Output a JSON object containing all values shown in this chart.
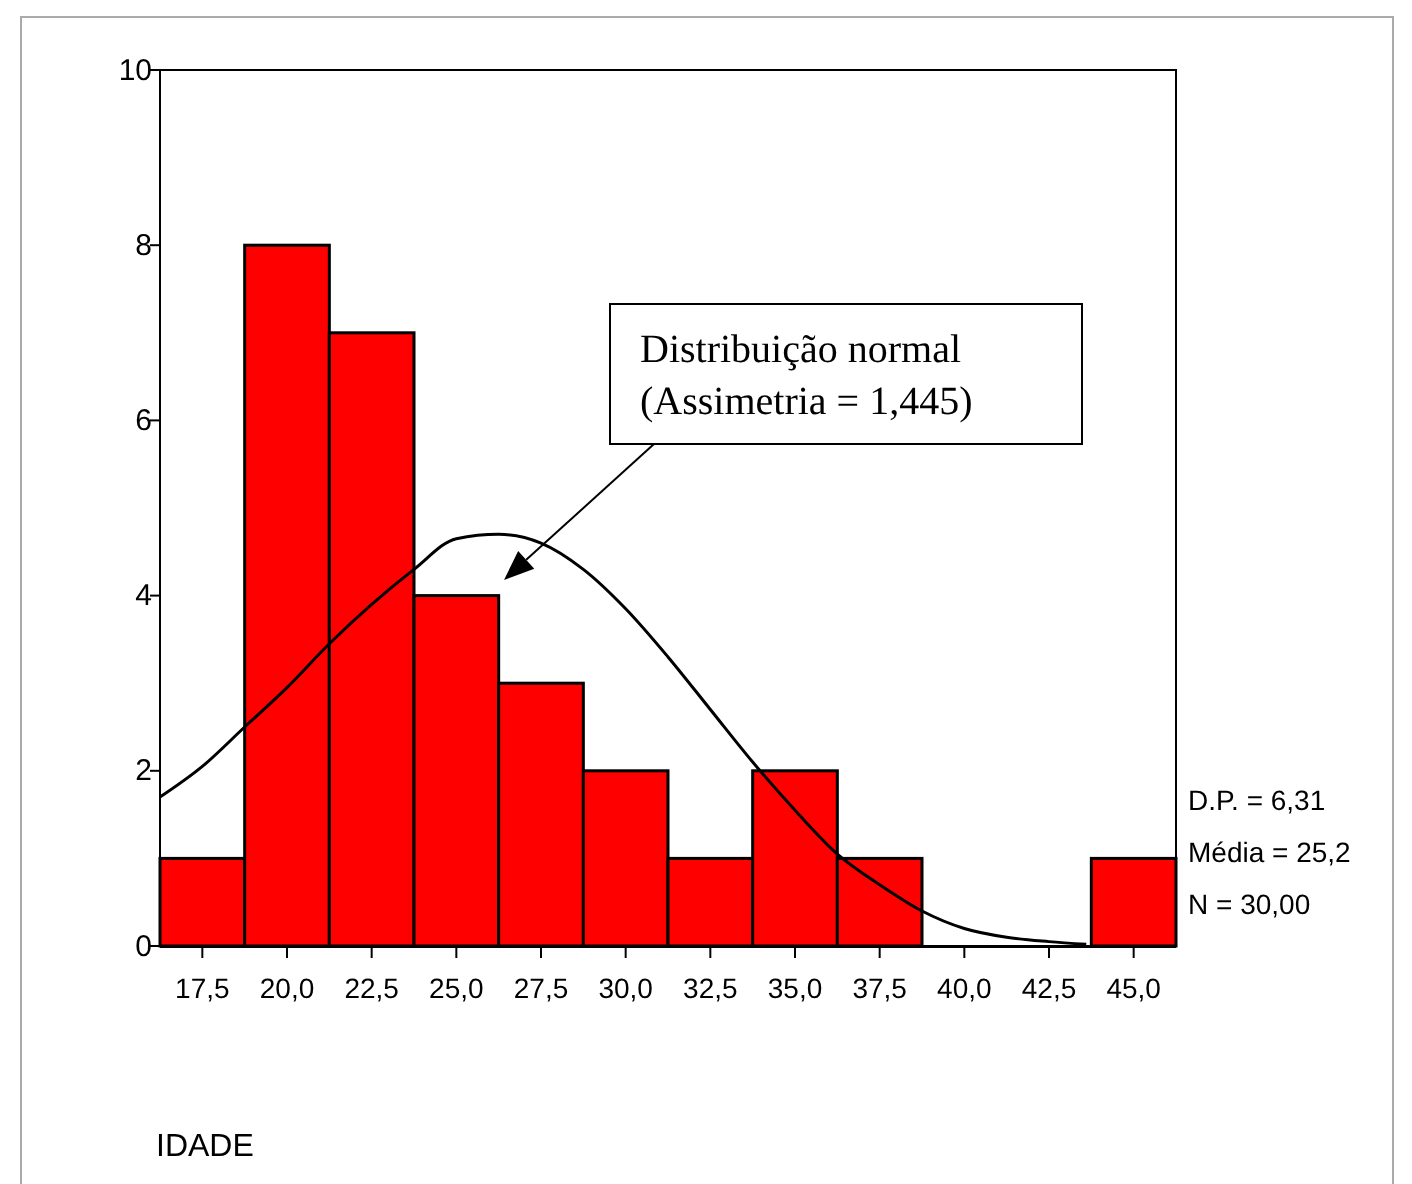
{
  "chart_data": {
    "type": "histogram",
    "xlabel": "IDADE",
    "bins": [
      16.25,
      18.75,
      21.25,
      23.75,
      26.25,
      28.75,
      31.25,
      33.75,
      36.25,
      38.75,
      41.25,
      43.75,
      46.25
    ],
    "values": [
      1,
      8,
      7,
      4,
      3,
      2,
      1,
      2,
      1,
      0,
      0,
      1
    ],
    "color": "#ff0000",
    "xlim": [
      16.25,
      46.25
    ],
    "xticks": [
      {
        "value": 17.5,
        "label": "17,5"
      },
      {
        "value": 20,
        "label": "20,0"
      },
      {
        "value": 22.5,
        "label": "22,5"
      },
      {
        "value": 25,
        "label": "25,0"
      },
      {
        "value": 27.5,
        "label": "27,5"
      },
      {
        "value": 30,
        "label": "30,0"
      },
      {
        "value": 32.5,
        "label": "32,5"
      },
      {
        "value": 35,
        "label": "35,0"
      },
      {
        "value": 37.5,
        "label": "37,5"
      },
      {
        "value": 40,
        "label": "40,0"
      },
      {
        "value": 42.5,
        "label": "42,5"
      },
      {
        "value": 45,
        "label": "45,0"
      }
    ],
    "ylim": [
      0,
      10
    ],
    "yticks": [
      0,
      2,
      4,
      6,
      8,
      10
    ],
    "series": [
      {
        "type": "line",
        "color": "#000000",
        "x": [
          16.25,
          17.5,
          18.75,
          20,
          21.25,
          22.5,
          23.75,
          25,
          26.25,
          27.5,
          28.75,
          30,
          31.25,
          32.5,
          33.75,
          35,
          36.25,
          37.5,
          38.75,
          40,
          41.25,
          42.5,
          43.6
        ],
        "values": [
          1.7,
          2.05,
          2.5,
          2.95,
          3.45,
          3.9,
          4.3,
          4.65,
          4.7,
          4.6,
          4.3,
          3.85,
          3.3,
          2.7,
          2.1,
          1.55,
          1.05,
          0.7,
          0.4,
          0.2,
          0.1,
          0.05,
          0.02
        ]
      }
    ],
    "annotations": [
      "Distribuição normal\n(Assimetria = 1,445)",
      "D.P. = 6,31",
      "Média = 25,2",
      "N = 30,00"
    ],
    "grid": false
  }
}
